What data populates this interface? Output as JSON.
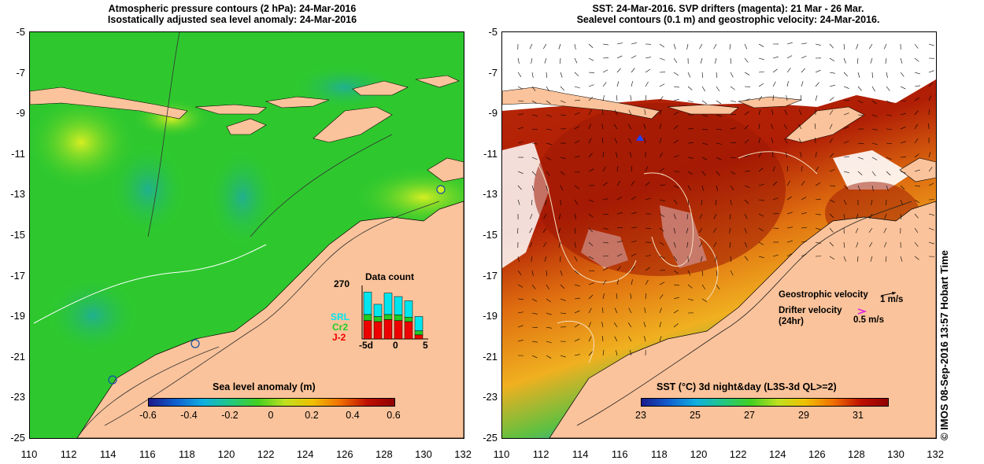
{
  "left_panel": {
    "title_line1": "Atmospheric pressure contours (2 hPa): 24-Mar-2016",
    "title_line2": "Isostatically adjusted sea level anomaly: 24-Mar-2016",
    "y_ticks": [
      "-5",
      "-7",
      "-9",
      "-11",
      "-13",
      "-15",
      "-17",
      "-19",
      "-21",
      "-23",
      "-25"
    ],
    "x_ticks": [
      "110",
      "112",
      "114",
      "116",
      "118",
      "120",
      "122",
      "124",
      "126",
      "128",
      "130",
      "132"
    ],
    "colorbar_label": "Sea level anomaly (m)",
    "colorbar_ticks": [
      "-0.6",
      "-0.4",
      "-0.2",
      "0",
      "0.2",
      "0.4",
      "0.6"
    ],
    "colors": {
      "ocean": "#2ec82e",
      "land": "#fbc39b",
      "anomaly_high": "#ccee22",
      "anomaly_low": "#22b488"
    },
    "data_count": {
      "title": "Data count",
      "ymax_label": "270",
      "x_ticks": [
        "-5d",
        "0",
        "5"
      ],
      "legend": [
        "SRL",
        "Cr2",
        "J-2"
      ],
      "legend_colors": [
        "#00e5ee",
        "#22cc22",
        "#ee0000"
      ],
      "bars_srl": [
        110,
        60,
        105,
        90,
        80,
        70
      ],
      "bars_cr2": [
        30,
        25,
        25,
        28,
        22,
        20
      ],
      "bars_j2": [
        90,
        85,
        95,
        90,
        85,
        20
      ]
    }
  },
  "right_panel": {
    "title_line1": "SST: 24-Mar-2016. SVP drifters (magenta): 21 Mar - 26 Mar.",
    "title_line2": "Sealevel contours (0.1 m) and geostrophic velocity: 24-Mar-2016.",
    "y_ticks": [
      "-5",
      "-7",
      "-9",
      "-11",
      "-13",
      "-15",
      "-17",
      "-19",
      "-21",
      "-23",
      "-25"
    ],
    "x_ticks": [
      "110",
      "112",
      "114",
      "116",
      "118",
      "120",
      "122",
      "124",
      "126",
      "128",
      "130",
      "132"
    ],
    "colorbar_label": "SST (°C) 3d night&day (L3S-3d QL>=2)",
    "colorbar_ticks": [
      "23",
      "25",
      "27",
      "29",
      "31"
    ],
    "colors": {
      "warm": "#b01e05",
      "mid": "#e07010",
      "cool": "#f0c020",
      "cold": "#10a0e0",
      "land": "#fbc39b"
    },
    "legend_geostrophic": "Geostrophic velocity",
    "legend_geostrophic_unit": "1 m/s",
    "legend_drifter_line1": "Drifter velocity",
    "legend_drifter_line2": "(24hr)",
    "legend_drifter_unit": "0.5 m/s"
  },
  "credit": "© IMOS 08-Sep-2016 13:57 Hobart Time"
}
